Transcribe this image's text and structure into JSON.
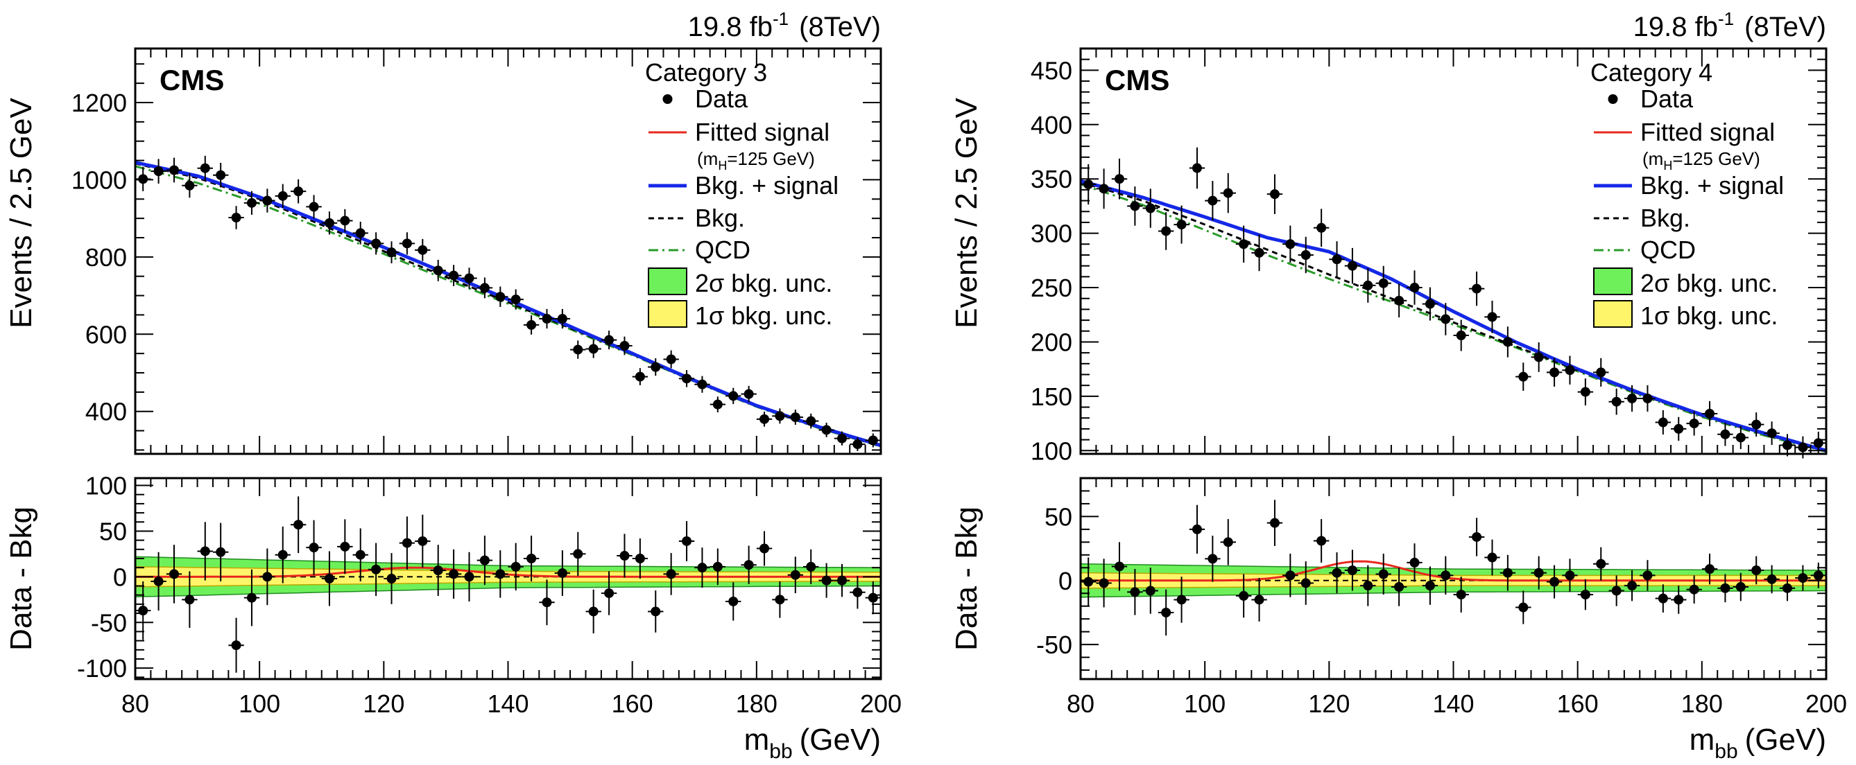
{
  "figure": {
    "luminosity_label": "19.8 fb",
    "luminosity_exp": "-1",
    "energy_label": "(8TeV)"
  },
  "chart_data": [
    {
      "type": "scatter",
      "panel": "left",
      "category": "Category 3",
      "experiment_label": "CMS",
      "xlabel": "m",
      "xlabel_sub": "bb",
      "xlabel_unit": "(GeV)",
      "xlim": [
        80,
        200
      ],
      "xticks": [
        80,
        100,
        120,
        140,
        160,
        180,
        200
      ],
      "top": {
        "ylabel": "Events / 2.5 GeV",
        "ylim": [
          290,
          1340
        ],
        "yticks": [
          400,
          600,
          800,
          1000,
          1200
        ],
        "series": [
          {
            "name": "Data",
            "kind": "points",
            "x_halfwidth": 1.25,
            "x": [
              81.25,
              83.75,
              86.25,
              88.75,
              91.25,
              93.75,
              96.25,
              98.75,
              101.25,
              103.75,
              106.25,
              108.75,
              111.25,
              113.75,
              116.25,
              118.75,
              121.25,
              123.75,
              126.25,
              128.75,
              131.25,
              133.75,
              136.25,
              138.75,
              141.25,
              143.75,
              146.25,
              148.75,
              151.25,
              153.75,
              156.25,
              158.75,
              161.25,
              163.75,
              166.25,
              168.75,
              171.25,
              173.75,
              176.25,
              178.75,
              181.25,
              183.75,
              186.25,
              188.75,
              191.25,
              193.75,
              196.25,
              198.75
            ],
            "y": [
              1002,
              1022,
              1025,
              985,
              1030,
              1012,
              902,
              940,
              946,
              958,
              970,
              930,
              888,
              894,
              862,
              835,
              812,
              835,
              818,
              765,
              752,
              745,
              720,
              697,
              690,
              624,
              640,
              640,
              560,
              562,
              585,
              570,
              490,
              515,
              535,
              485,
              470,
              418,
              440,
              445,
              380,
              388,
              385,
              375,
              352,
              330,
              315,
              325
            ]
          },
          {
            "name": "Fitted signal",
            "kind": "curve",
            "color": "#e8281e",
            "peak": 125,
            "sigma": 9,
            "amplitude": 10
          },
          {
            "name": "Bkg. + signal",
            "kind": "curve",
            "color": "#1428e6",
            "x": [
              80,
              90,
              100,
              110,
              120,
              130,
              140,
              150,
              160,
              170,
              180,
              190,
              200
            ],
            "y": [
              1045,
              1010,
              955,
              890,
              825,
              758,
              690,
              620,
              550,
              480,
              415,
              360,
              312
            ]
          },
          {
            "name": "Bkg.",
            "kind": "curve",
            "color": "#000000",
            "x": [
              80,
              90,
              100,
              110,
              120,
              130,
              140,
              150,
              160,
              170,
              180,
              190,
              200
            ],
            "y": [
              1042,
              1005,
              950,
              883,
              815,
              748,
              683,
              616,
              548,
              478,
              413,
              358,
              310
            ]
          },
          {
            "name": "QCD",
            "kind": "curve",
            "color": "#2a9a2a",
            "x": [
              80,
              90,
              100,
              110,
              120,
              130,
              140,
              150,
              160,
              170,
              180,
              190,
              200
            ],
            "y": [
              1035,
              992,
              938,
              874,
              808,
              742,
              679,
              613,
              546,
              477,
              412,
              357,
              309
            ]
          }
        ]
      },
      "bottom": {
        "ylabel": "Data - Bkg",
        "ylim": [
          -112,
          108
        ],
        "yticks": [
          -100,
          -50,
          0,
          50,
          100
        ],
        "points": {
          "x": [
            81.25,
            83.75,
            86.25,
            88.75,
            91.25,
            93.75,
            96.25,
            98.75,
            101.25,
            103.75,
            106.25,
            108.75,
            111.25,
            113.75,
            116.25,
            118.75,
            121.25,
            123.75,
            126.25,
            128.75,
            131.25,
            133.75,
            136.25,
            138.75,
            141.25,
            143.75,
            146.25,
            148.75,
            151.25,
            153.75,
            156.25,
            158.75,
            161.25,
            163.75,
            166.25,
            168.75,
            171.25,
            173.75,
            176.25,
            178.75,
            181.25,
            183.75,
            186.25,
            188.75,
            191.25,
            193.75,
            196.25,
            198.75
          ],
          "y": [
            -37,
            -5,
            3,
            -25,
            28,
            27,
            -75,
            -23,
            0,
            24,
            57,
            32,
            -2,
            33,
            24,
            8,
            -2,
            37,
            39,
            7,
            3,
            0,
            18,
            3,
            11,
            20,
            -28,
            4,
            25,
            -38,
            -18,
            23,
            20,
            -38,
            3,
            39,
            10,
            11,
            -27,
            13,
            31,
            -25,
            2,
            11,
            -4,
            -4,
            -17,
            -23
          ],
          "err": [
            32,
            32,
            32,
            31,
            32,
            32,
            30,
            31,
            31,
            31,
            31,
            30,
            30,
            30,
            29,
            29,
            28,
            29,
            29,
            28,
            27,
            27,
            27,
            26,
            26,
            25,
            25,
            25,
            24,
            24,
            24,
            24,
            22,
            23,
            23,
            22,
            22,
            20,
            21,
            21,
            19,
            20,
            20,
            19,
            19,
            18,
            18,
            18
          ]
        },
        "band_1sigma": {
          "x": [
            80,
            140,
            200
          ],
          "half": [
            11,
            6,
            5
          ]
        },
        "band_2sigma": {
          "x": [
            80,
            140,
            200
          ],
          "half": [
            22,
            12,
            10
          ]
        },
        "signal_curve": {
          "peak": 125,
          "sigma": 9,
          "amplitude": 10
        }
      },
      "legend": {
        "title": "Category 3",
        "entries": [
          {
            "label": "Data",
            "style": "point"
          },
          {
            "label": "Fitted signal",
            "style": "red-line",
            "sublabel": "(m",
            "sublabel_sub": "H",
            "sublabel_tail": "=125 GeV)"
          },
          {
            "label": "Bkg. + signal",
            "style": "blue-line"
          },
          {
            "label": "Bkg.",
            "style": "black-dashed"
          },
          {
            "label": "QCD",
            "style": "green-dashdot"
          },
          {
            "label": "2σ bkg. unc.",
            "style": "green-box"
          },
          {
            "label": "1σ bkg. unc.",
            "style": "yellow-box"
          }
        ]
      }
    },
    {
      "type": "scatter",
      "panel": "right",
      "category": "Category 4",
      "experiment_label": "CMS",
      "xlabel": "m",
      "xlabel_sub": "bb",
      "xlabel_unit": "(GeV)",
      "xlim": [
        80,
        200
      ],
      "xticks": [
        80,
        100,
        120,
        140,
        160,
        180,
        200
      ],
      "top": {
        "ylabel": "Events / 2.5 GeV",
        "ylim": [
          97,
          470
        ],
        "yticks": [
          100,
          150,
          200,
          250,
          300,
          350,
          400,
          450
        ],
        "series": [
          {
            "name": "Data",
            "kind": "points",
            "x_halfwidth": 1.25,
            "x": [
              81.25,
              83.75,
              86.25,
              88.75,
              91.25,
              93.75,
              96.25,
              98.75,
              101.25,
              103.75,
              106.25,
              108.75,
              111.25,
              113.75,
              116.25,
              118.75,
              121.25,
              123.75,
              126.25,
              128.75,
              131.25,
              133.75,
              136.25,
              138.75,
              141.25,
              143.75,
              146.25,
              148.75,
              151.25,
              153.75,
              156.25,
              158.75,
              161.25,
              163.75,
              166.25,
              168.75,
              171.25,
              173.75,
              176.25,
              178.75,
              181.25,
              183.75,
              186.25,
              188.75,
              191.25,
              193.75,
              196.25,
              198.75
            ],
            "y": [
              345,
              341,
              350,
              325,
              323,
              302,
              308,
              360,
              330,
              337,
              290,
              282,
              336,
              290,
              280,
              305,
              276,
              270,
              252,
              254,
              238,
              250,
              235,
              221,
              206,
              249,
              223,
              200,
              168,
              186,
              172,
              174,
              154,
              172,
              145,
              148,
              148,
              126,
              120,
              125,
              134,
              115,
              112,
              124,
              116,
              105,
              103,
              107
            ]
          },
          {
            "name": "Fitted signal",
            "kind": "curve",
            "color": "#e8281e",
            "peak": 125,
            "sigma": 7,
            "amplitude": 15
          },
          {
            "name": "Bkg. + signal",
            "kind": "curve",
            "color": "#1428e6",
            "x": [
              80,
              90,
              100,
              110,
              120,
              130,
              140,
              150,
              160,
              170,
              180,
              190,
              200
            ],
            "y": [
              348,
              333,
              315,
              296,
              283,
              258,
              228,
              200,
              175,
              153,
              133,
              116,
              100
            ]
          },
          {
            "name": "Bkg.",
            "kind": "curve",
            "color": "#000000",
            "x": [
              80,
              90,
              100,
              110,
              120,
              130,
              140,
              150,
              160,
              170,
              180,
              190,
              200
            ],
            "y": [
              347,
              330,
              308,
              285,
              262,
              240,
              218,
              196,
              174,
              152,
              132,
              115,
              100
            ]
          },
          {
            "name": "QCD",
            "kind": "curve",
            "color": "#2a9a2a",
            "x": [
              80,
              90,
              100,
              110,
              120,
              130,
              140,
              150,
              160,
              170,
              180,
              190,
              200
            ],
            "y": [
              345,
              326,
              303,
              280,
              258,
              237,
              216,
              195,
              173,
              151,
              131,
              114,
              99
            ]
          }
        ]
      },
      "bottom": {
        "ylabel": "Data - Bkg",
        "ylim": [
          -77,
          80
        ],
        "yticks": [
          -50,
          0,
          50
        ],
        "points": {
          "x": [
            81.25,
            83.75,
            86.25,
            88.75,
            91.25,
            93.75,
            96.25,
            98.75,
            101.25,
            103.75,
            106.25,
            108.75,
            111.25,
            113.75,
            116.25,
            118.75,
            121.25,
            123.75,
            126.25,
            128.75,
            131.25,
            133.75,
            136.25,
            138.75,
            141.25,
            143.75,
            146.25,
            148.75,
            151.25,
            153.75,
            156.25,
            158.75,
            161.25,
            163.75,
            166.25,
            168.75,
            171.25,
            173.75,
            176.25,
            178.75,
            181.25,
            183.75,
            186.25,
            188.75,
            191.25,
            193.75,
            196.25,
            198.75
          ],
          "y": [
            -1,
            -2,
            11,
            -9,
            -8,
            -25,
            -15,
            40,
            17,
            30,
            -12,
            -15,
            45,
            4,
            -2,
            31,
            6,
            8,
            -4,
            5,
            -5,
            14,
            -4,
            4,
            -11,
            34,
            18,
            6,
            -21,
            6,
            -1,
            4,
            -11,
            13,
            -8,
            -4,
            4,
            -14,
            -15,
            -7,
            9,
            -6,
            -5,
            8,
            1,
            -6,
            2,
            4
          ],
          "err": [
            19,
            19,
            19,
            18,
            18,
            18,
            18,
            19,
            18,
            18,
            17,
            17,
            18,
            17,
            17,
            17,
            16,
            16,
            16,
            16,
            15,
            15,
            15,
            15,
            14,
            15,
            14,
            14,
            13,
            13,
            13,
            13,
            12,
            13,
            12,
            12,
            12,
            11,
            11,
            11,
            12,
            11,
            11,
            11,
            11,
            10,
            10,
            10
          ]
        },
        "band_1sigma": {
          "x": [
            80,
            140,
            200
          ],
          "half": [
            6,
            4,
            4
          ]
        },
        "band_2sigma": {
          "x": [
            80,
            140,
            200
          ],
          "half": [
            13,
            9,
            8
          ]
        },
        "signal_curve": {
          "peak": 125,
          "sigma": 7,
          "amplitude": 15
        }
      },
      "legend": {
        "title": "Category 4",
        "entries": [
          {
            "label": "Data",
            "style": "point"
          },
          {
            "label": "Fitted signal",
            "style": "red-line",
            "sublabel": "(m",
            "sublabel_sub": "H",
            "sublabel_tail": "=125 GeV)"
          },
          {
            "label": "Bkg. + signal",
            "style": "blue-line"
          },
          {
            "label": "Bkg.",
            "style": "black-dashed"
          },
          {
            "label": "QCD",
            "style": "green-dashdot"
          },
          {
            "label": "2σ bkg. unc.",
            "style": "green-box"
          },
          {
            "label": "1σ bkg. unc.",
            "style": "yellow-box"
          }
        ]
      }
    }
  ]
}
